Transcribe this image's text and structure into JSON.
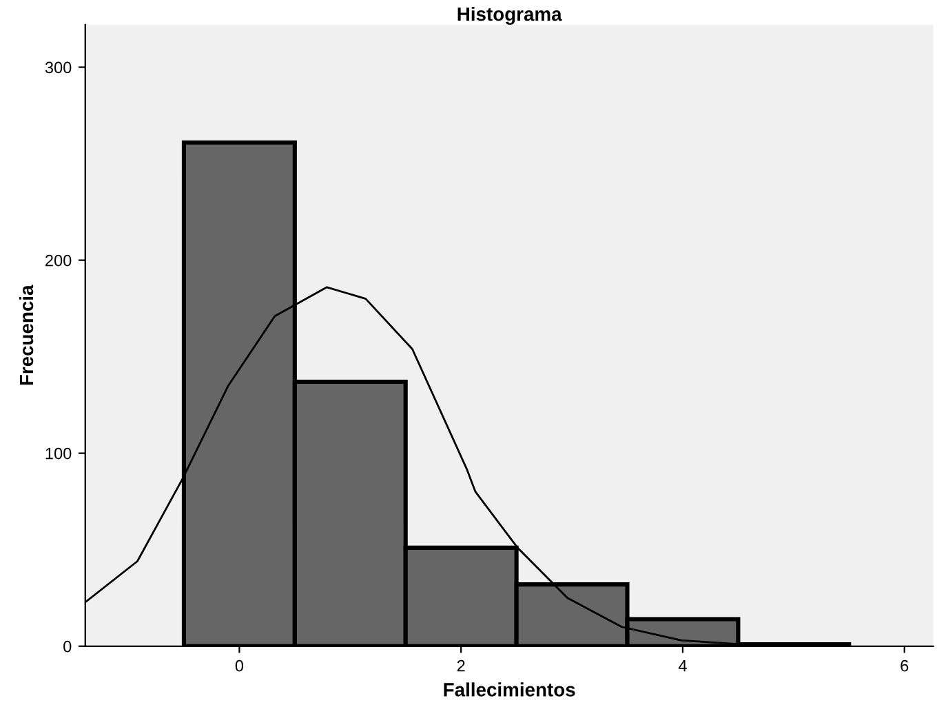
{
  "chart_data": {
    "type": "histogram",
    "title": "Histograma",
    "xlabel": "Fallecimientos",
    "ylabel": "Frecuencia",
    "bins": [
      -0.5,
      0.5,
      1.5,
      2.5,
      3.5,
      4.5,
      5.5
    ],
    "values": [
      261,
      137,
      51,
      32,
      14,
      1
    ],
    "color": "#666666",
    "series": [
      {
        "type": "line",
        "color": "#000000",
        "x": [
          -1.385,
          -0.92,
          -0.51,
          -0.1,
          0.32,
          0.79,
          1.14,
          1.56,
          2.05,
          2.13,
          2.51,
          2.96,
          3.45,
          3.99,
          4.53
        ],
        "values": [
          23,
          44,
          87,
          135,
          171,
          186,
          180,
          154,
          92,
          80,
          51,
          25,
          10,
          3,
          1
        ]
      }
    ],
    "xlim": [
      -1.39,
      6.26
    ],
    "xticks": [
      0,
      2,
      4,
      6
    ],
    "ylim": [
      0,
      322
    ],
    "yticks": [
      0,
      100,
      200,
      300
    ],
    "grid": false,
    "legend": false
  }
}
